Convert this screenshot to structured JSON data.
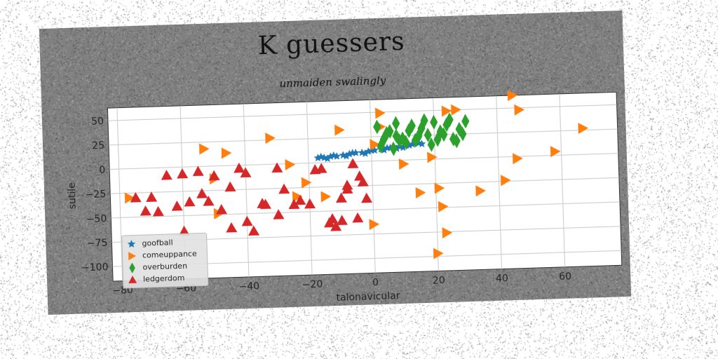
{
  "chart_data": {
    "type": "scatter",
    "title": "K guessers",
    "subtitle": "unmaiden swalingly",
    "xlabel": "talonavicular",
    "ylabel": "sutile",
    "xlim": [
      -83,
      78
    ],
    "ylim": [
      -115,
      63
    ],
    "xticks": [
      -80,
      -60,
      -40,
      -20,
      0,
      20,
      40,
      60
    ],
    "yticks": [
      50,
      25,
      0,
      -25,
      -50,
      -75,
      -100
    ],
    "grid": true,
    "legend_position": "bottom-left",
    "series": [
      {
        "name": "goofball",
        "marker": "star",
        "color": "#1f77b4",
        "points": [
          [
            -17,
            5
          ],
          [
            -15,
            5
          ],
          [
            -13,
            6
          ],
          [
            -11,
            6
          ],
          [
            -9,
            7
          ],
          [
            -7,
            8
          ],
          [
            -5,
            9
          ],
          [
            -3,
            9
          ],
          [
            -1,
            10
          ],
          [
            1,
            11
          ],
          [
            3,
            12
          ],
          [
            5,
            13
          ],
          [
            7,
            14
          ],
          [
            9,
            14
          ],
          [
            11,
            15
          ],
          [
            13,
            16
          ],
          [
            15,
            17
          ],
          [
            -12,
            7
          ],
          [
            -6,
            9
          ],
          [
            0,
            11
          ],
          [
            6,
            13
          ],
          [
            12,
            15
          ],
          [
            -14,
            4
          ],
          [
            -8,
            6
          ],
          [
            -2,
            8
          ],
          [
            4,
            11
          ],
          [
            10,
            13
          ],
          [
            16,
            16
          ],
          [
            -16,
            6
          ],
          [
            8,
            12
          ]
        ]
      },
      {
        "name": "comeuppance",
        "marker": "triangle-right",
        "color": "#ff7f0e",
        "points": [
          [
            45,
            63
          ],
          [
            47,
            48
          ],
          [
            24,
            49
          ],
          [
            27,
            50
          ],
          [
            3,
            49
          ],
          [
            -10,
            33
          ],
          [
            -32,
            27
          ],
          [
            -53,
            18
          ],
          [
            -46,
            13
          ],
          [
            -26,
            -1
          ],
          [
            -50,
            -13
          ],
          [
            -77,
            -30
          ],
          [
            -21,
            -20
          ],
          [
            -24,
            -34
          ],
          [
            -15,
            -35
          ],
          [
            -49,
            -49
          ],
          [
            0,
            -65
          ],
          [
            21,
            -30
          ],
          [
            15,
            -34
          ],
          [
            34,
            -34
          ],
          [
            42,
            -24
          ],
          [
            46,
            -2
          ],
          [
            58,
            4
          ],
          [
            67,
            27
          ],
          [
            19,
            2
          ],
          [
            10,
            -4
          ],
          [
            22,
            -49
          ],
          [
            23,
            -76
          ],
          [
            20,
            -97
          ],
          [
            3,
            35
          ],
          [
            1,
            17
          ]
        ]
      },
      {
        "name": "overburden",
        "marker": "diamond",
        "color": "#2ca02c",
        "points": [
          [
            2,
            35
          ],
          [
            4,
            22
          ],
          [
            6,
            30
          ],
          [
            8,
            38
          ],
          [
            10,
            22
          ],
          [
            12,
            30
          ],
          [
            14,
            20
          ],
          [
            16,
            32
          ],
          [
            18,
            25
          ],
          [
            20,
            38
          ],
          [
            22,
            28
          ],
          [
            24,
            35
          ],
          [
            26,
            20
          ],
          [
            28,
            30
          ],
          [
            30,
            38
          ],
          [
            3,
            15
          ],
          [
            7,
            12
          ],
          [
            11,
            18
          ],
          [
            15,
            24
          ],
          [
            19,
            15
          ],
          [
            23,
            25
          ],
          [
            27,
            18
          ],
          [
            8,
            25
          ],
          [
            13,
            35
          ],
          [
            17,
            40
          ],
          [
            21,
            20
          ],
          [
            25,
            40
          ],
          [
            29,
            25
          ],
          [
            5,
            28
          ],
          [
            9,
            20
          ]
        ]
      },
      {
        "name": "ledgerdom",
        "marker": "triangle-up",
        "color": "#d62728",
        "points": [
          [
            -65,
            -8
          ],
          [
            -60,
            -7
          ],
          [
            -55,
            -5
          ],
          [
            -50,
            -10
          ],
          [
            -45,
            -22
          ],
          [
            -42,
            -3
          ],
          [
            -40,
            -8
          ],
          [
            -35,
            -40
          ],
          [
            -30,
            -4
          ],
          [
            -28,
            -26
          ],
          [
            -23,
            -38
          ],
          [
            -20,
            -42
          ],
          [
            -18,
            -7
          ],
          [
            -16,
            -6
          ],
          [
            -13,
            -58
          ],
          [
            -10,
            -37
          ],
          [
            -8,
            -28
          ],
          [
            -6,
            -2
          ],
          [
            -4,
            -15
          ],
          [
            -3,
            -21
          ],
          [
            -8,
            -24
          ],
          [
            -62,
            -40
          ],
          [
            -68,
            -45
          ],
          [
            -72,
            -44
          ],
          [
            -58,
            -36
          ],
          [
            -54,
            -28
          ],
          [
            -48,
            -45
          ],
          [
            -40,
            -58
          ],
          [
            -38,
            -68
          ],
          [
            -34,
            -41
          ],
          [
            -30,
            -52
          ],
          [
            -25,
            -42
          ],
          [
            -60,
            -66
          ],
          [
            -45,
            -64
          ],
          [
            -14,
            -62
          ],
          [
            -12,
            -66
          ],
          [
            -10,
            -60
          ],
          [
            -5,
            -58
          ],
          [
            -2,
            -38
          ],
          [
            -70,
            -30
          ],
          [
            -75,
            -30
          ],
          [
            -52,
            -36
          ]
        ]
      }
    ]
  }
}
